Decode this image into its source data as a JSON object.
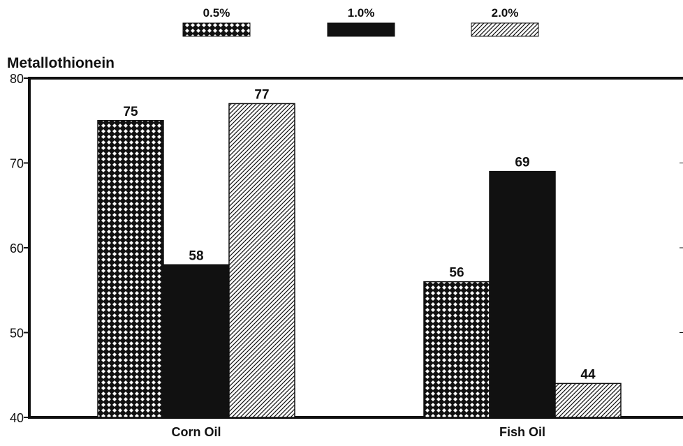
{
  "chart_data": {
    "type": "bar",
    "ylabel": "Metallothionein",
    "categories": [
      "Corn Oil",
      "Fish Oil"
    ],
    "series": [
      {
        "name": "0.5%",
        "values": [
          75,
          56
        ],
        "pattern": "crosshatch"
      },
      {
        "name": "1.0%",
        "values": [
          58,
          69
        ],
        "pattern": "solid"
      },
      {
        "name": "2.0%",
        "values": [
          77,
          44
        ],
        "pattern": "diagonal"
      }
    ],
    "ylim": [
      40,
      80
    ],
    "yticks": [
      40,
      50,
      60,
      70,
      80
    ],
    "data_labels": [
      [
        "75",
        "56"
      ],
      [
        "58",
        "69"
      ],
      [
        "77",
        "44"
      ]
    ],
    "legend_position": "top",
    "grid": false,
    "colors": {
      "ink": "#111111",
      "background": "#ffffff"
    }
  }
}
